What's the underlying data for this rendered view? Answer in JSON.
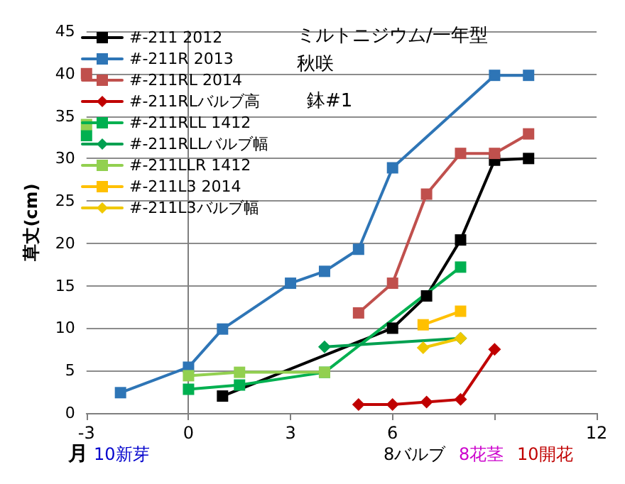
{
  "chart_data": {
    "type": "line",
    "title": "ミルトニジウム/一年型",
    "subtitle": "秋咲",
    "xlabel": "月",
    "ylabel": "草丈(cm)",
    "annotations": [
      "鉢#1",
      "10新芽",
      "8バルブ",
      "8花茎",
      "10開花"
    ],
    "xlim": [
      -3,
      12
    ],
    "xticks": [
      -3,
      0,
      3,
      6,
      {
        "value": 9,
        "label": null
      },
      12
    ],
    "ylim": [
      0,
      45
    ],
    "yticks": [
      0,
      5,
      10,
      15,
      20,
      25,
      30,
      35,
      40,
      45
    ],
    "grid": "y",
    "legend": "top left",
    "marker": "square",
    "line_style": "solid",
    "series": [
      {
        "name": "#-211 2012",
        "color": "#000000",
        "x": [
          1,
          6,
          7,
          8,
          9,
          10
        ],
        "values": [
          2,
          10,
          13.8,
          20.4,
          29.8,
          30
        ]
      },
      {
        "name": "#-211R 2013",
        "color": "#2e75b6",
        "x": [
          -2,
          0,
          1,
          3,
          4,
          5,
          6,
          9,
          10
        ],
        "values": [
          2.4,
          5.4,
          9.9,
          15.3,
          16.7,
          19.3,
          28.9,
          39.8,
          39.8
        ]
      },
      {
        "name": "#-211RL 2014",
        "color": "#c0504d",
        "x": [
          -3,
          0,
          5,
          6,
          7,
          8,
          9,
          10
        ],
        "values": [
          40,
          null,
          11.8,
          15.3,
          25.8,
          30.6,
          30.6,
          32.9
        ]
      },
      {
        "name": "#-211RLバルブ高",
        "color": "#c00000",
        "marker": "diamond",
        "x": [
          5,
          6,
          7,
          8,
          9
        ],
        "values": [
          1,
          1,
          1.3,
          1.6,
          7.5
        ]
      },
      {
        "name": "#-211RLL 1412",
        "color": "#00b050",
        "x": [
          -3,
          -1,
          0,
          1.5,
          4,
          8
        ],
        "values": [
          32.7,
          null,
          2.8,
          3.3,
          4.8,
          17.2
        ]
      },
      {
        "name": "#-211RLLバルブ幅",
        "color": "#00a050",
        "marker": "diamond",
        "x": [
          4,
          8
        ],
        "values": [
          7.8,
          8.8
        ]
      },
      {
        "name": "#-211LLR 1412",
        "color": "#92d050",
        "x": [
          -3,
          -1,
          0,
          1.5,
          4
        ],
        "values": [
          34,
          null,
          4.4,
          4.8,
          4.8
        ]
      },
      {
        "name": "#-211L3 2014",
        "color": "#ffc000",
        "x": [
          6.9,
          8
        ],
        "values": [
          10.4,
          12
        ]
      },
      {
        "name": "#-211L3バルブ幅",
        "color": "#f0c800",
        "marker": "diamond",
        "x": [
          6.9,
          8
        ],
        "values": [
          7.7,
          8.8
        ]
      }
    ]
  }
}
